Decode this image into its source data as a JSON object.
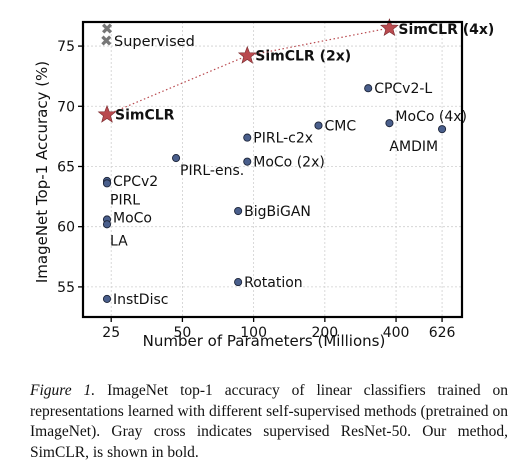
{
  "chart_data": {
    "type": "scatter",
    "xlabel": "Number of Parameters (Millions)",
    "ylabel": "ImageNet Top-1 Accuracy (%)",
    "x_scale": "log",
    "x_ticks": [
      25,
      50,
      100,
      200,
      400,
      626
    ],
    "x_tick_labels": [
      "25",
      "50",
      "100",
      "200",
      "400",
      "626"
    ],
    "xlim": [
      19,
      760
    ],
    "y_ticks": [
      55,
      60,
      65,
      70,
      75
    ],
    "ylim": [
      52.5,
      77
    ],
    "grid": true,
    "legend": {
      "label": "Supervised",
      "placement": "top-left"
    },
    "supervised": {
      "x": 24,
      "y": 76.5
    },
    "simclr_line_style": "dotted",
    "simclr": [
      {
        "label": "SimCLR",
        "x": 24,
        "y": 69.3
      },
      {
        "label": "SimCLR (2x)",
        "x": 94,
        "y": 74.2
      },
      {
        "label": "SimCLR (4x)",
        "x": 375,
        "y": 76.5
      }
    ],
    "methods": [
      {
        "label": "CPCv2-L",
        "x": 305,
        "y": 71.5
      },
      {
        "label": "MoCo (4x)",
        "x": 375,
        "y": 68.6
      },
      {
        "label": "AMDIM",
        "x": 626,
        "y": 68.1
      },
      {
        "label": "CMC",
        "x": 188,
        "y": 68.4
      },
      {
        "label": "PIRL-c2x",
        "x": 94,
        "y": 67.4
      },
      {
        "label": "MoCo (2x)",
        "x": 94,
        "y": 65.4
      },
      {
        "label": "PIRL-ens.",
        "x": 47,
        "y": 65.7
      },
      {
        "label": "CPCv2",
        "x": 24,
        "y": 63.8
      },
      {
        "label": "PIRL",
        "x": 24,
        "y": 63.6
      },
      {
        "label": "MoCo",
        "x": 24,
        "y": 60.6
      },
      {
        "label": "LA",
        "x": 24,
        "y": 60.2
      },
      {
        "label": "BigBiGAN",
        "x": 86,
        "y": 61.3
      },
      {
        "label": "Rotation",
        "x": 86,
        "y": 55.4
      },
      {
        "label": "InstDisc",
        "x": 24,
        "y": 54.0
      }
    ],
    "colors": {
      "method_marker": "#4a5f8c",
      "method_edge": "#1c2438",
      "simclr_star": "#b94a4f",
      "supervised_cross": "#777777",
      "grid": "#cfcfcf"
    }
  },
  "caption": {
    "figure_label": "Figure 1.",
    "text": "ImageNet top-1 accuracy of linear classifiers trained on representations learned with different self-supervised methods (pretrained on ImageNet). Gray cross indicates supervised ResNet-50. Our method, SimCLR, is shown in bold."
  }
}
